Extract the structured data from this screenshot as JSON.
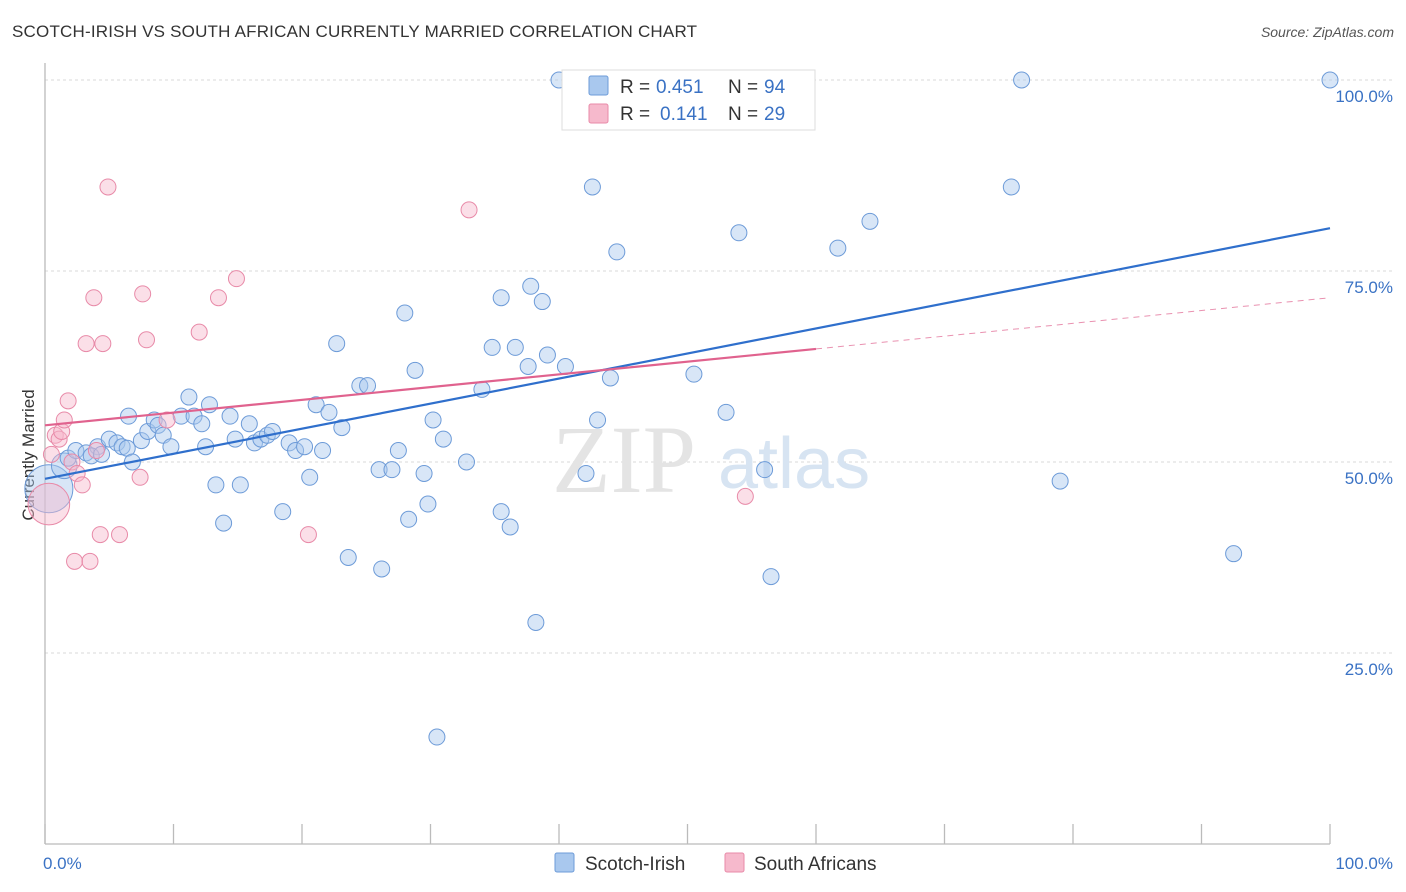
{
  "header": {
    "title": "SCOTCH-IRISH VS SOUTH AFRICAN CURRENTLY MARRIED CORRELATION CHART",
    "source": "Source: ZipAtlas.com"
  },
  "legend": {
    "rows": [
      {
        "r_label": "R =",
        "r_value": "0.451",
        "n_label": "N =",
        "n_value": "94"
      },
      {
        "r_label": "R =",
        "r_value": "0.141",
        "n_label": "N =",
        "n_value": "29"
      }
    ]
  },
  "watermark": {
    "zip": "ZIP",
    "atlas": "atlas"
  },
  "colors": {
    "scotch_fill": "#a9c8ee",
    "scotch_stroke": "#6d9bd8",
    "scotch_line": "#2f6fcc",
    "sa_fill": "#f6b9cc",
    "sa_stroke": "#e88aa8",
    "sa_line": "#e0628e",
    "tick": "#3a72c4",
    "grid": "#d9d9d9"
  },
  "chart_data": {
    "type": "scatter",
    "title": "SCOTCH-IRISH VS SOUTH AFRICAN CURRENTLY MARRIED CORRELATION CHART",
    "xlabel": "",
    "ylabel": "Currently Married",
    "xlim": [
      0,
      100
    ],
    "ylim": [
      0,
      105
    ],
    "x_tick_labels": [
      "0.0%",
      "100.0%"
    ],
    "y_ticks": [
      25,
      50,
      75,
      100
    ],
    "y_tick_labels": [
      "25.0%",
      "50.0%",
      "75.0%",
      "100.0%"
    ],
    "grid": true,
    "legend_position": "top-center",
    "series": [
      {
        "name": "Scotch-Irish",
        "r": 0.451,
        "n": 94,
        "trend": {
          "x0": 0,
          "y0": 47.8,
          "x1": 100,
          "y1": 80.6
        },
        "points": [
          [
            0.3,
            46.5,
            3
          ],
          [
            1.5,
            49.5,
            1.6
          ],
          [
            1.8,
            50.5,
            1
          ],
          [
            2.4,
            51.5,
            1
          ],
          [
            3.2,
            51.2,
            1
          ],
          [
            4.1,
            52.0,
            1
          ],
          [
            3.6,
            50.8,
            1
          ],
          [
            4.4,
            51.0,
            1
          ],
          [
            5.0,
            53.0,
            1
          ],
          [
            5.6,
            52.5,
            1
          ],
          [
            6.0,
            52.0,
            1
          ],
          [
            6.4,
            51.8,
            1
          ],
          [
            6.8,
            50.0,
            1
          ],
          [
            6.5,
            56.0,
            1
          ],
          [
            7.5,
            52.8,
            1
          ],
          [
            8.0,
            54.0,
            1
          ],
          [
            8.5,
            55.5,
            1
          ],
          [
            8.8,
            54.8,
            1
          ],
          [
            9.2,
            53.5,
            1
          ],
          [
            9.8,
            52.0,
            1
          ],
          [
            10.6,
            56.0,
            1
          ],
          [
            11.2,
            58.5,
            1
          ],
          [
            11.6,
            56.0,
            1
          ],
          [
            12.2,
            55.0,
            1
          ],
          [
            12.5,
            52.0,
            1
          ],
          [
            12.8,
            57.5,
            1
          ],
          [
            13.3,
            47.0,
            1
          ],
          [
            13.9,
            42.0,
            1
          ],
          [
            14.4,
            56.0,
            1
          ],
          [
            14.8,
            53.0,
            1
          ],
          [
            15.2,
            47.0,
            1
          ],
          [
            15.9,
            55.0,
            1
          ],
          [
            16.3,
            52.5,
            1
          ],
          [
            16.8,
            53.0,
            1
          ],
          [
            17.3,
            53.5,
            1
          ],
          [
            17.7,
            54.0,
            1
          ],
          [
            18.5,
            43.5,
            1
          ],
          [
            19.0,
            52.5,
            1
          ],
          [
            19.5,
            51.5,
            1
          ],
          [
            20.2,
            52.0,
            1
          ],
          [
            20.6,
            48.0,
            1
          ],
          [
            21.1,
            57.5,
            1
          ],
          [
            21.6,
            51.5,
            1
          ],
          [
            22.1,
            56.5,
            1
          ],
          [
            22.7,
            65.5,
            1
          ],
          [
            23.1,
            54.5,
            1
          ],
          [
            23.6,
            37.5,
            1
          ],
          [
            24.5,
            60.0,
            1
          ],
          [
            25.1,
            60.0,
            1
          ],
          [
            26.0,
            49.0,
            1
          ],
          [
            26.2,
            36.0,
            1
          ],
          [
            27.0,
            49.0,
            1
          ],
          [
            27.5,
            51.5,
            1
          ],
          [
            28.0,
            69.5,
            1
          ],
          [
            28.3,
            42.5,
            1
          ],
          [
            28.8,
            62.0,
            1
          ],
          [
            29.5,
            48.5,
            1
          ],
          [
            29.8,
            44.5,
            1
          ],
          [
            30.2,
            55.5,
            1
          ],
          [
            31.0,
            53.0,
            1
          ],
          [
            30.5,
            14.0,
            1
          ],
          [
            32.8,
            50.0,
            1
          ],
          [
            34.0,
            59.5,
            1
          ],
          [
            34.8,
            65.0,
            1
          ],
          [
            35.5,
            71.5,
            1
          ],
          [
            35.5,
            43.5,
            1
          ],
          [
            36.2,
            41.5,
            1
          ],
          [
            36.6,
            65.0,
            1
          ],
          [
            37.6,
            62.5,
            1
          ],
          [
            37.8,
            73.0,
            1
          ],
          [
            38.2,
            29.0,
            1
          ],
          [
            38.7,
            71.0,
            1
          ],
          [
            39.1,
            64.0,
            1
          ],
          [
            40.0,
            100.0,
            1
          ],
          [
            40.5,
            62.5,
            1
          ],
          [
            42.1,
            48.5,
            1
          ],
          [
            42.6,
            86.0,
            1
          ],
          [
            43.0,
            55.5,
            1
          ],
          [
            44.0,
            61.0,
            1
          ],
          [
            44.5,
            77.5,
            1
          ],
          [
            50.0,
            100.0,
            1
          ],
          [
            50.5,
            61.5,
            1
          ],
          [
            53.0,
            56.5,
            1
          ],
          [
            54.0,
            80.0,
            1
          ],
          [
            56.0,
            49.0,
            1
          ],
          [
            56.5,
            35.0,
            1
          ],
          [
            61.7,
            78.0,
            1
          ],
          [
            64.2,
            81.5,
            1
          ],
          [
            75.2,
            86.0,
            1
          ],
          [
            76.0,
            100.0,
            1
          ],
          [
            79.0,
            47.5,
            1
          ],
          [
            92.5,
            38.0,
            1
          ],
          [
            100.0,
            100.0,
            1
          ]
        ]
      },
      {
        "name": "South Africans",
        "r": 0.141,
        "n": 29,
        "trend": {
          "x0": 0,
          "y0": 54.8,
          "x1": 60,
          "y1": 64.8,
          "dashed_to_x": 100,
          "dashed_to_y": 71.5
        },
        "points": [
          [
            0.3,
            44.5,
            2.6
          ],
          [
            0.5,
            51.0,
            1
          ],
          [
            0.8,
            53.5,
            1
          ],
          [
            1.1,
            53.0,
            1
          ],
          [
            1.3,
            54.0,
            1
          ],
          [
            1.5,
            55.5,
            1
          ],
          [
            1.8,
            58.0,
            1
          ],
          [
            2.1,
            50.0,
            1
          ],
          [
            2.3,
            37.0,
            1
          ],
          [
            2.5,
            48.5,
            1
          ],
          [
            2.9,
            47.0,
            1
          ],
          [
            3.2,
            65.5,
            1
          ],
          [
            3.5,
            37.0,
            1
          ],
          [
            3.8,
            71.5,
            1
          ],
          [
            4.0,
            51.5,
            1
          ],
          [
            4.3,
            40.5,
            1
          ],
          [
            4.5,
            65.5,
            1
          ],
          [
            4.9,
            86.0,
            1
          ],
          [
            5.8,
            40.5,
            1
          ],
          [
            7.4,
            48.0,
            1
          ],
          [
            7.6,
            72.0,
            1
          ],
          [
            7.9,
            66.0,
            1
          ],
          [
            9.5,
            55.5,
            1
          ],
          [
            12.0,
            67.0,
            1
          ],
          [
            13.5,
            71.5,
            1
          ],
          [
            14.9,
            74.0,
            1
          ],
          [
            20.5,
            40.5,
            1
          ],
          [
            33.0,
            83.0,
            1
          ],
          [
            54.5,
            45.5,
            1
          ]
        ]
      }
    ]
  },
  "bottom_legend": {
    "items": [
      {
        "label": "Scotch-Irish"
      },
      {
        "label": "South Africans"
      }
    ]
  }
}
